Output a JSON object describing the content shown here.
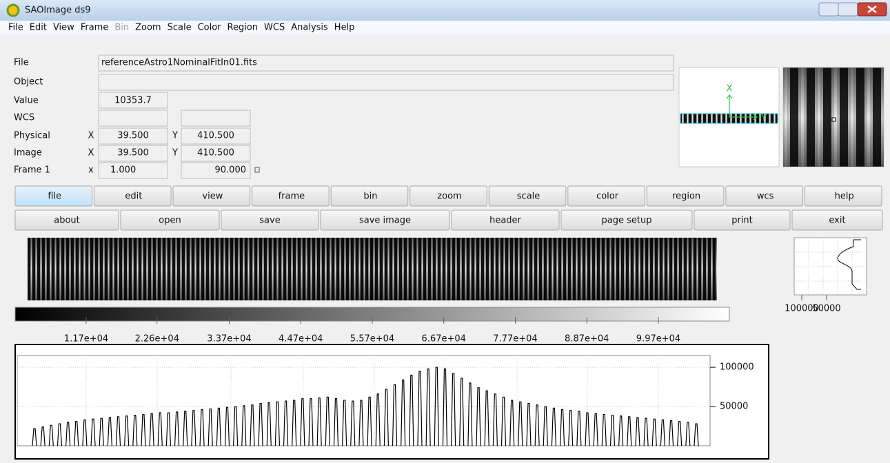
{
  "window": {
    "title": "SAOImage ds9"
  },
  "menu": [
    {
      "label": "File",
      "enabled": true
    },
    {
      "label": "Edit",
      "enabled": true
    },
    {
      "label": "View",
      "enabled": true
    },
    {
      "label": "Frame",
      "enabled": true
    },
    {
      "label": "Bin",
      "enabled": false
    },
    {
      "label": "Zoom",
      "enabled": true
    },
    {
      "label": "Scale",
      "enabled": true
    },
    {
      "label": "Color",
      "enabled": true
    },
    {
      "label": "Region",
      "enabled": true
    },
    {
      "label": "WCS",
      "enabled": true
    },
    {
      "label": "Analysis",
      "enabled": true
    },
    {
      "label": "Help",
      "enabled": true
    }
  ],
  "info": {
    "file": {
      "label": "File",
      "value": "referenceAstro1NominalFitIn01.fits"
    },
    "object": {
      "label": "Object"
    },
    "value": {
      "label": "Value",
      "value": "10353.7"
    },
    "wcs": {
      "label": "WCS"
    },
    "physical": {
      "label": "Physical",
      "x_label": "X",
      "x": "39.500",
      "y_label": "Y",
      "y": "410.500"
    },
    "image": {
      "label": "Image",
      "x_label": "X",
      "x": "39.500",
      "y_label": "Y",
      "y": "410.500"
    },
    "frame": {
      "label": "Frame 1",
      "x_label": "x",
      "x": "1.000",
      "y": "90.000"
    }
  },
  "panner": {
    "x_label": "X",
    "y_label": "Y"
  },
  "buttons": {
    "main": [
      "file",
      "edit",
      "view",
      "frame",
      "bin",
      "zoom",
      "scale",
      "color",
      "region",
      "wcs",
      "help"
    ],
    "selected": "file",
    "sub": [
      "about",
      "open",
      "save",
      "save image",
      "header",
      "page setup",
      "print",
      "exit"
    ]
  },
  "colorbar": {
    "lim": [
      780,
      110620
    ],
    "ticks": [
      {
        "value": 11700,
        "label": "1.17e+04"
      },
      {
        "value": 22600,
        "label": "2.26e+04"
      },
      {
        "value": 33700,
        "label": "3.37e+04"
      },
      {
        "value": 44700,
        "label": "4.47e+04"
      },
      {
        "value": 55700,
        "label": "5.57e+04"
      },
      {
        "value": 66700,
        "label": "6.67e+04"
      },
      {
        "value": 77700,
        "label": "7.77e+04"
      },
      {
        "value": 88700,
        "label": "8.87e+04"
      },
      {
        "value": 99700,
        "label": "9.97e+04"
      }
    ]
  },
  "profile": {
    "xticks": [
      100000,
      50000
    ]
  },
  "graph": {
    "type": "line",
    "ylim": [
      0,
      115000
    ],
    "yticks": [
      100000,
      50000
    ],
    "peaks": [
      22000,
      24000,
      26000,
      28000,
      30000,
      31000,
      33000,
      34000,
      35000,
      36000,
      37000,
      38000,
      39000,
      40000,
      41000,
      42000,
      42000,
      43000,
      44000,
      45000,
      46000,
      47000,
      48000,
      49000,
      50000,
      51000,
      52000,
      54000,
      55000,
      56000,
      57000,
      58000,
      60000,
      60000,
      61000,
      62000,
      60000,
      58000,
      57000,
      58000,
      62000,
      66000,
      72000,
      78000,
      84000,
      90000,
      95000,
      98000,
      100000,
      98000,
      92000,
      86000,
      80000,
      74000,
      70000,
      66000,
      62000,
      58000,
      56000,
      54000,
      52000,
      50000,
      48000,
      46000,
      45000,
      44000,
      42000,
      41000,
      40000,
      39000,
      38000,
      37000,
      36000,
      35000,
      34000,
      33000,
      32000,
      31000,
      30000,
      28000
    ]
  }
}
